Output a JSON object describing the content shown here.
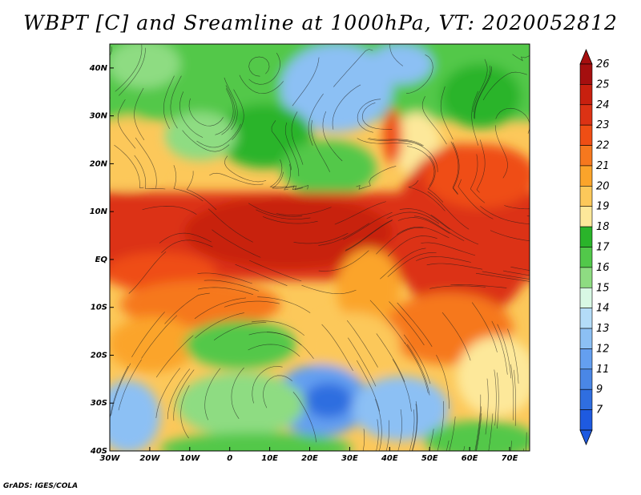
{
  "title": "WBPT [C] and Sreamline at 1000hPa, VT: 2020052812",
  "credit": "GrADS: IGES/COLA",
  "map": {
    "lon_range": [
      -30,
      75
    ],
    "lat_range": [
      -40,
      45
    ],
    "lon_ticks": [
      {
        "value": -30,
        "label": "30W"
      },
      {
        "value": -20,
        "label": "20W"
      },
      {
        "value": -10,
        "label": "10W"
      },
      {
        "value": 0,
        "label": "0"
      },
      {
        "value": 10,
        "label": "10E"
      },
      {
        "value": 20,
        "label": "20E"
      },
      {
        "value": 30,
        "label": "30E"
      },
      {
        "value": 40,
        "label": "40E"
      },
      {
        "value": 50,
        "label": "50E"
      },
      {
        "value": 60,
        "label": "60E"
      },
      {
        "value": 70,
        "label": "70E"
      }
    ],
    "lat_ticks": [
      {
        "value": 40,
        "label": "40N"
      },
      {
        "value": 30,
        "label": "30N"
      },
      {
        "value": 20,
        "label": "20N"
      },
      {
        "value": 10,
        "label": "10N"
      },
      {
        "value": 0,
        "label": "EQ"
      },
      {
        "value": -10,
        "label": "10S"
      },
      {
        "value": -20,
        "label": "20S"
      },
      {
        "value": -30,
        "label": "30S"
      },
      {
        "value": -40,
        "label": "40S"
      }
    ]
  },
  "colorbar": {
    "levels": [
      {
        "label": "26",
        "color": "#a50f0f"
      },
      {
        "label": "25",
        "color": "#c8200f"
      },
      {
        "label": "24",
        "color": "#dc3214"
      },
      {
        "label": "23",
        "color": "#ef4e14"
      },
      {
        "label": "22",
        "color": "#f6781e"
      },
      {
        "label": "21",
        "color": "#fba42a"
      },
      {
        "label": "20",
        "color": "#fcc85a"
      },
      {
        "label": "19",
        "color": "#fde89a"
      },
      {
        "label": "18",
        "color": "#2ab42a"
      },
      {
        "label": "17",
        "color": "#52c84a"
      },
      {
        "label": "16",
        "color": "#8edc82"
      },
      {
        "label": "15",
        "color": "#d8f8e4"
      },
      {
        "label": "14",
        "color": "#b4dcf8"
      },
      {
        "label": "13",
        "color": "#8cc0f4"
      },
      {
        "label": "12",
        "color": "#649ff0"
      },
      {
        "label": "11",
        "color": "#4a87e6"
      },
      {
        "label": "9",
        "color": "#2f6ee0"
      },
      {
        "label": "7",
        "color": "#1e5ae0"
      }
    ],
    "top_color": "#a50f0f",
    "bottom_color": "#1e5ae0"
  }
}
